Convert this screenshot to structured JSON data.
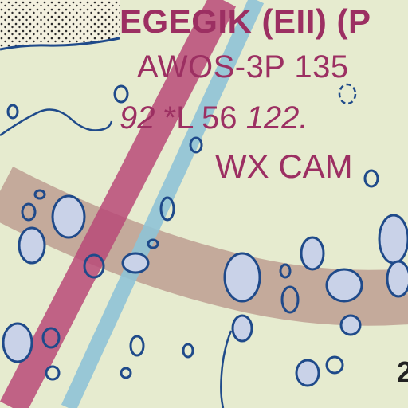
{
  "airport": {
    "name_line": "EGEGIK (EII) (P",
    "weather_line": "AWOS-3P 135",
    "elev_prefix": "92 ",
    "lighting": "*L 56 ",
    "frequency": "122.",
    "camera": "WX CAM"
  },
  "edge_number": "2",
  "colors": {
    "land": "#e6ebcf",
    "water_outline": "#1f4a8a",
    "lake_fill": "#c9d2e8",
    "airspace_band": "#b58f84",
    "route_magenta": "#b94a78",
    "route_blue": "#8fc3d6",
    "label_magenta": "#9c2f62"
  }
}
